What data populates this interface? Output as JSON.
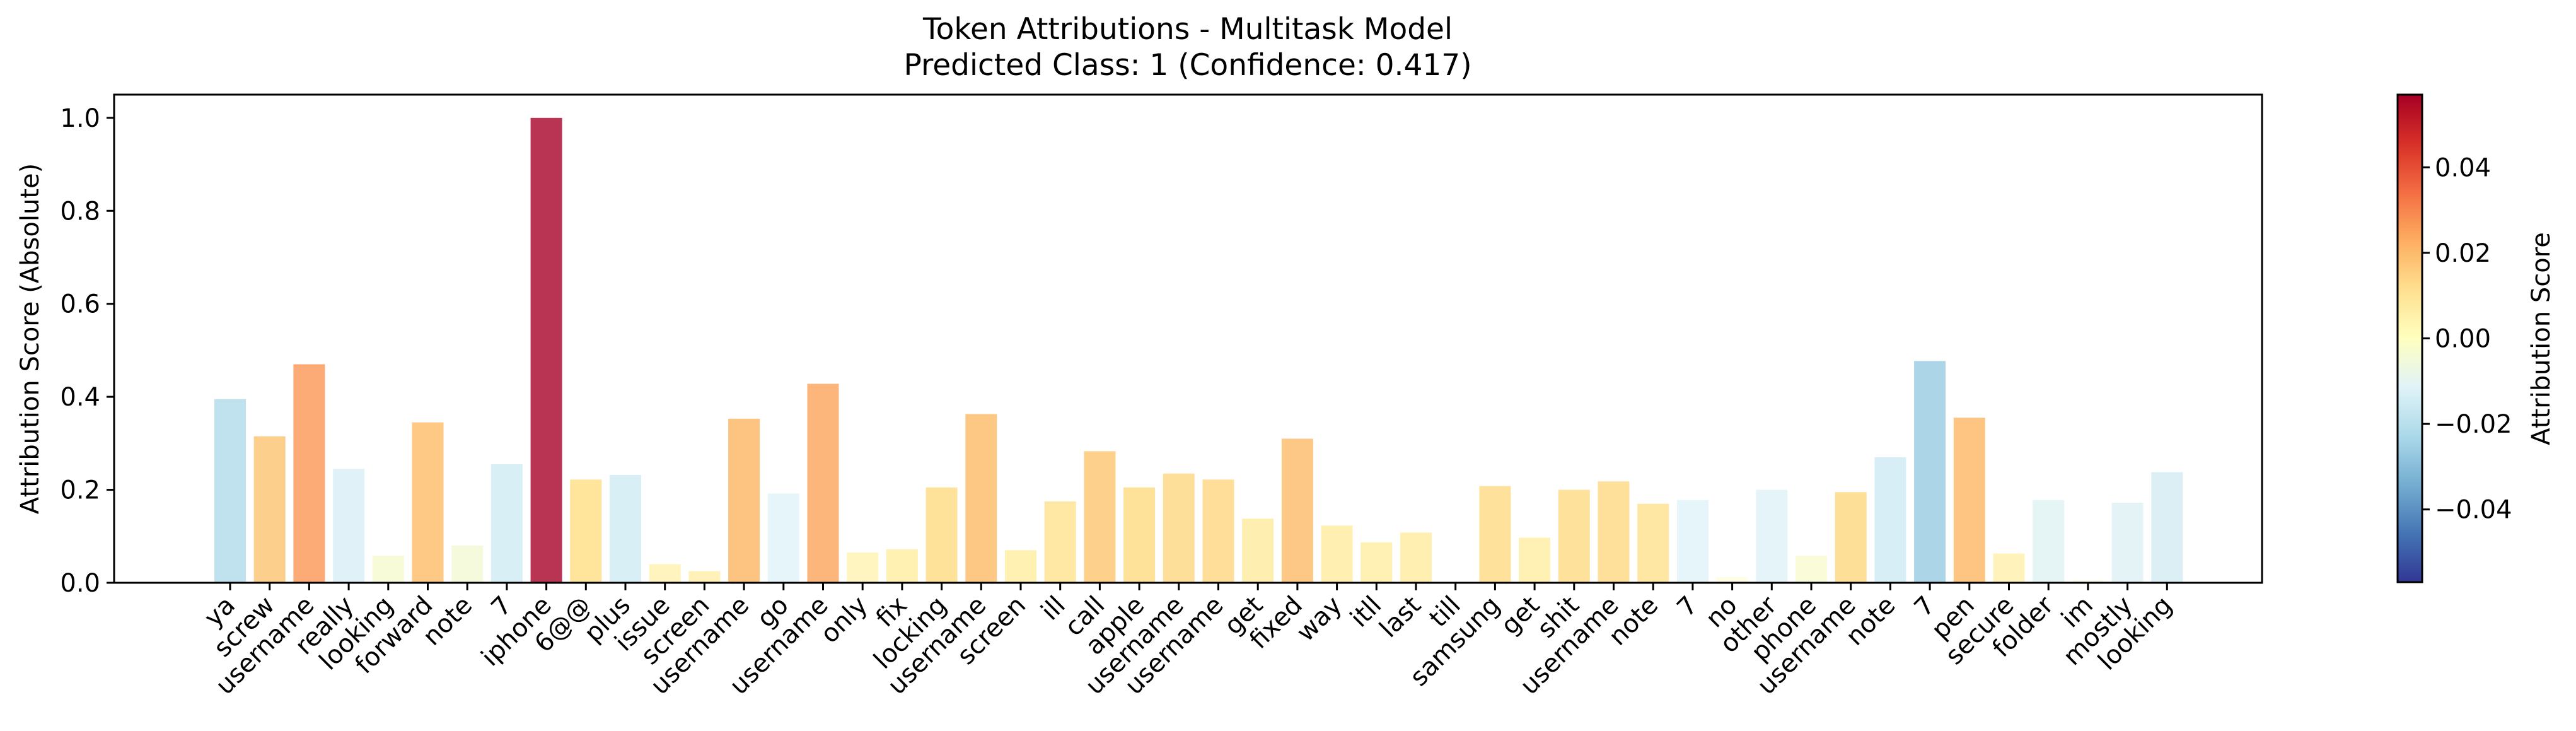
{
  "chart_data": {
    "type": "bar",
    "title": "Token Attributions - Multitask Model",
    "subtitle": "Predicted Class: 1 (Confidence: 0.417)",
    "xlabel": "",
    "ylabel": "Attribution Score (Absolute)",
    "ylim": [
      0,
      1.05
    ],
    "yticks": [
      0.0,
      0.2,
      0.4,
      0.6,
      0.8,
      1.0
    ],
    "ytick_labels": [
      "0.0",
      "0.2",
      "0.4",
      "0.6",
      "0.8",
      "1.0"
    ],
    "grid": false,
    "color_scale": {
      "label": "Attribution Score",
      "colormap": "RdYlBu_r",
      "range": [
        -0.057,
        0.057
      ],
      "ticks": [
        -0.04,
        -0.02,
        0.0,
        0.02,
        0.04
      ],
      "tick_labels": [
        "−0.04",
        "−0.02",
        "0.00",
        "0.02",
        "0.04"
      ]
    },
    "categories": [
      "ya",
      "screw",
      "username",
      "really",
      "looking",
      "forward",
      "note",
      "7",
      "iphone",
      "6@@",
      "plus",
      "issue",
      "screen",
      "username",
      "go",
      "username",
      "only",
      "fix",
      "locking",
      "username",
      "screen",
      "ill",
      "call",
      "apple",
      "username",
      "username",
      "get",
      "fixed",
      "way",
      "itll",
      "last",
      "till",
      "samsung",
      "get",
      "shit",
      "username",
      "note",
      "7",
      "no",
      "other",
      "phone",
      "username",
      "note",
      "7",
      "pen",
      "secure",
      "folder",
      "im",
      "mostly",
      "looking"
    ],
    "values": [
      0.395,
      0.315,
      0.47,
      0.245,
      0.058,
      0.345,
      0.08,
      0.255,
      1.0,
      0.222,
      0.232,
      0.04,
      0.025,
      0.353,
      0.192,
      0.428,
      0.065,
      0.072,
      0.205,
      0.363,
      0.07,
      0.175,
      0.283,
      0.205,
      0.235,
      0.222,
      0.138,
      0.31,
      0.123,
      0.087,
      0.108,
      0.0,
      0.208,
      0.097,
      0.2,
      0.218,
      0.17,
      0.178,
      0.012,
      0.2,
      0.058,
      0.195,
      0.27,
      0.477,
      0.355,
      0.063,
      0.178,
      0.005,
      0.172,
      0.238
    ],
    "colors": [
      "#bfe2ee",
      "#fdcf8c",
      "#fcaa76",
      "#e0f2f8",
      "#f8fbd8",
      "#fdc985",
      "#f4fadb",
      "#d9eff6",
      "#b83452",
      "#fee59b",
      "#d9eff6",
      "#fff4be",
      "#fff1b7",
      "#fdc481",
      "#e6f5f9",
      "#fcb57b",
      "#fff5c0",
      "#fff1b2",
      "#fee29a",
      "#fdc784",
      "#fff1b2",
      "#fee8a3",
      "#fdd08c",
      "#fee29a",
      "#fedf99",
      "#fede99",
      "#feefb1",
      "#fdc885",
      "#fff0b2",
      "#fff1b4",
      "#fff0b2",
      "#fffbe0",
      "#fee29b",
      "#fff1b4",
      "#fee29b",
      "#fee09b",
      "#fee7a2",
      "#e6f5f9",
      "#fffde6",
      "#e4f4f9",
      "#f9fbd9",
      "#fedf97",
      "#d8eef6",
      "#acd5e7",
      "#fdc581",
      "#fff3bb",
      "#e5f4f4",
      "#fbfbe9",
      "#e3f3f6",
      "#dbeff5"
    ]
  }
}
